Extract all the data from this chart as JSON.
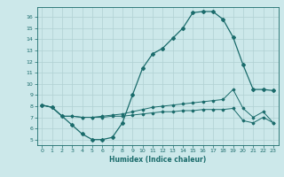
{
  "xlabel": "Humidex (Indice chaleur)",
  "xlim": [
    -0.5,
    23.5
  ],
  "ylim": [
    4.5,
    16.9
  ],
  "yticks": [
    5,
    6,
    7,
    8,
    9,
    10,
    11,
    12,
    13,
    14,
    15,
    16
  ],
  "xticks": [
    0,
    1,
    2,
    3,
    4,
    5,
    6,
    7,
    8,
    9,
    10,
    11,
    12,
    13,
    14,
    15,
    16,
    17,
    18,
    19,
    20,
    21,
    22,
    23
  ],
  "bg_color": "#cce8ea",
  "grid_color": "#b0d0d2",
  "line_color": "#1a6b6b",
  "curve1_x": [
    0,
    1,
    2,
    3,
    4,
    5,
    6,
    7,
    8,
    9,
    10,
    11,
    12,
    13,
    14,
    15,
    16,
    17,
    18,
    19,
    20,
    21,
    22,
    23
  ],
  "curve1_y": [
    8.1,
    7.9,
    7.1,
    6.3,
    5.5,
    5.0,
    5.0,
    5.2,
    6.5,
    9.0,
    11.4,
    12.7,
    13.2,
    14.1,
    15.0,
    16.4,
    16.5,
    16.5,
    15.8,
    14.2,
    11.7,
    9.5,
    9.5,
    9.4
  ],
  "curve2_x": [
    0,
    1,
    2,
    3,
    4,
    5,
    6,
    7,
    8,
    9,
    10,
    11,
    12,
    13,
    14,
    15,
    16,
    17,
    18,
    19,
    20,
    21,
    22,
    23
  ],
  "curve2_y": [
    8.1,
    7.9,
    7.1,
    7.1,
    7.0,
    7.0,
    7.1,
    7.2,
    7.3,
    7.5,
    7.7,
    7.9,
    8.0,
    8.1,
    8.2,
    8.3,
    8.4,
    8.5,
    8.6,
    9.5,
    7.8,
    7.0,
    7.5,
    6.5
  ],
  "curve3_x": [
    0,
    1,
    2,
    3,
    4,
    5,
    6,
    7,
    8,
    9,
    10,
    11,
    12,
    13,
    14,
    15,
    16,
    17,
    18,
    19,
    20,
    21,
    22,
    23
  ],
  "curve3_y": [
    8.1,
    7.9,
    7.1,
    7.1,
    7.0,
    7.0,
    7.0,
    7.1,
    7.1,
    7.2,
    7.3,
    7.4,
    7.5,
    7.5,
    7.6,
    7.6,
    7.7,
    7.7,
    7.7,
    7.8,
    6.7,
    6.5,
    7.0,
    6.5
  ]
}
